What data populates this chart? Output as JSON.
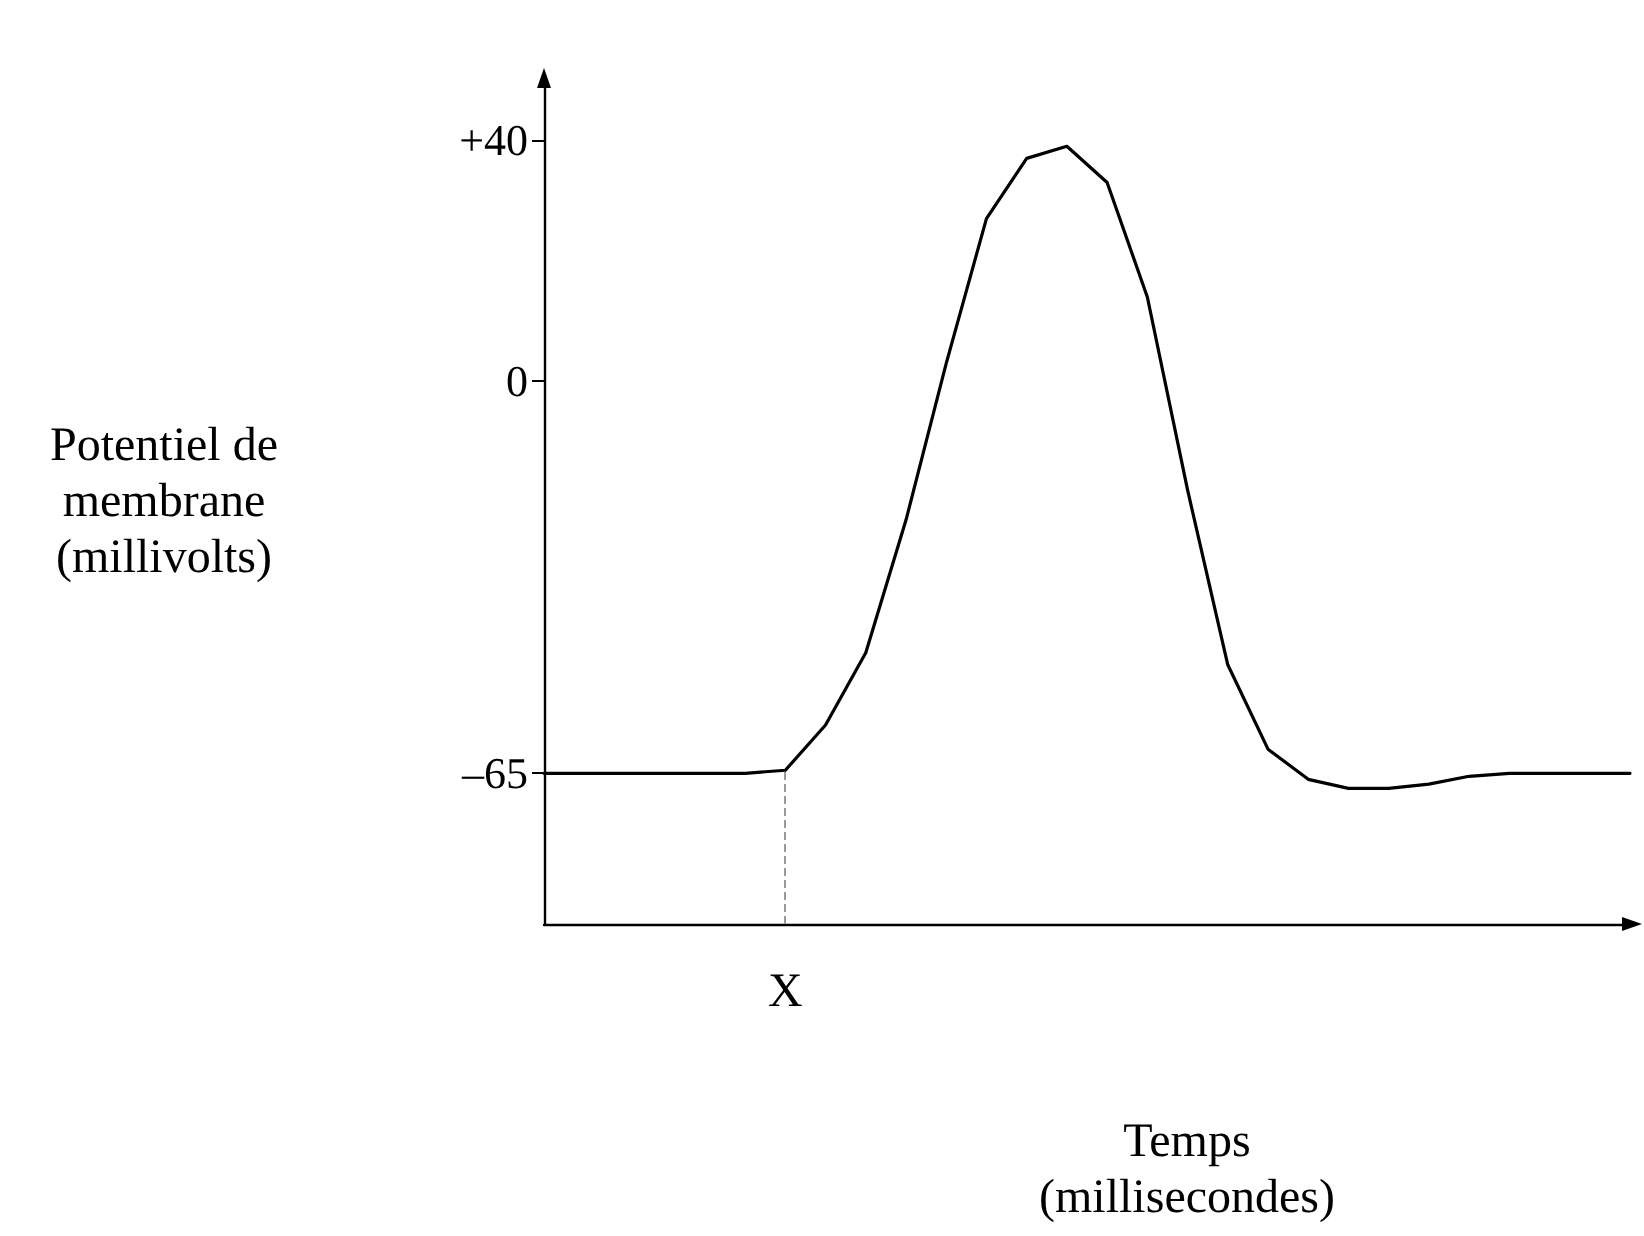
{
  "chart_data": {
    "type": "line",
    "xlabel": "Temps\n(millisecondes)",
    "ylabel": "Potentiel de\nmembrane\n(millivolts)",
    "categories": [
      null,
      null,
      null,
      null,
      null,
      null,
      "X",
      null,
      null,
      null,
      null,
      null,
      null,
      null,
      null,
      null,
      null,
      null,
      null,
      null,
      null,
      null,
      null,
      null,
      null,
      null,
      null,
      null
    ],
    "ylim": [
      -90,
      50
    ],
    "yticks": [
      {
        "value": 40,
        "label": "+40"
      },
      0,
      {
        "value": -65,
        "label": "–65"
      }
    ],
    "marker": "none",
    "line_style": "solid",
    "grid": false,
    "series": [
      {
        "color": "#000000",
        "values": [
          -65,
          -65,
          -65,
          -65,
          -65,
          -65,
          -64.5,
          -57,
          -45,
          -23,
          3,
          27,
          37,
          39,
          33,
          14,
          -18,
          -47,
          -61,
          -66,
          -67.5,
          -67.5,
          -66.8,
          -65.5,
          -65,
          -65,
          -65,
          -65
        ]
      }
    ],
    "ref_lines": [
      {
        "axis": "x",
        "value": "X",
        "color": "#999999",
        "line_style": "dashed"
      }
    ]
  }
}
